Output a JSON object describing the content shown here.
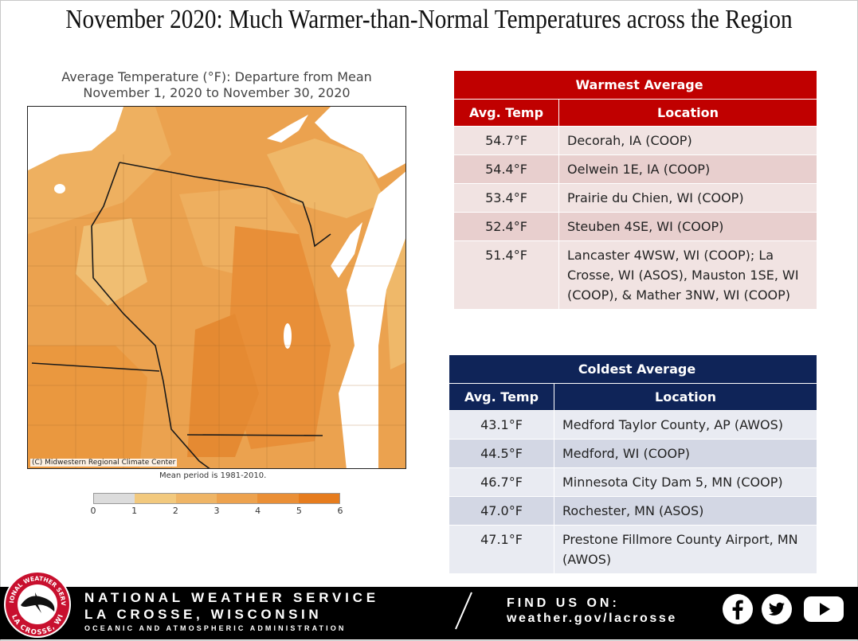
{
  "title": "November 2020:  Much Warmer-than-Normal Temperatures across the Region",
  "map": {
    "title_line1": "Average Temperature (°F): Departure from Mean",
    "title_line2": "November 1, 2020 to November 30, 2020",
    "credit": "(C) Midwestern Regional Climate Center",
    "mean_period": "Mean period is 1981-2010.",
    "legend": {
      "ticks": [
        "0",
        "1",
        "2",
        "3",
        "4",
        "5",
        "6"
      ],
      "colors": [
        "#dcdcdc",
        "#f2c97e",
        "#efb566",
        "#eda24e",
        "#ea8f36",
        "#e67c1e"
      ]
    }
  },
  "warmest": {
    "caption": "Warmest  Average",
    "headers": [
      "Avg. Temp",
      "Location"
    ],
    "rows": [
      {
        "temp": "54.7°F",
        "location": "Decorah, IA (COOP)"
      },
      {
        "temp": "54.4°F",
        "location": "Oelwein 1E, IA (COOP)"
      },
      {
        "temp": "53.4°F",
        "location": "Prairie du Chien, WI (COOP)"
      },
      {
        "temp": "52.4°F",
        "location": "Steuben 4SE, WI (COOP)"
      },
      {
        "temp": "51.4°F",
        "location": "Lancaster 4WSW, WI (COOP); La Crosse, WI (ASOS), Mauston 1SE, WI (COOP), & Mather 3NW, WI (COOP)"
      }
    ]
  },
  "coldest": {
    "caption": "Coldest Average",
    "headers": [
      "Avg. Temp",
      "Location"
    ],
    "rows": [
      {
        "temp": "43.1°F",
        "location": "Medford Taylor County, AP (AWOS)"
      },
      {
        "temp": "44.5°F",
        "location": "Medford, WI (COOP)"
      },
      {
        "temp": "46.7°F",
        "location": "Minnesota City Dam 5, MN (COOP)"
      },
      {
        "temp": "47.0°F",
        "location": "Rochester, MN (ASOS)"
      },
      {
        "temp": "47.1°F",
        "location": "Prestone Fillmore County Airport, MN (AWOS)"
      }
    ]
  },
  "footer": {
    "org_line1": "NATIONAL WEATHER SERVICE",
    "org_line2": "LA CROSSE, WISCONSIN",
    "org_line3": "OCEANIC AND ATMOSPHERIC ADMINISTRATION",
    "find_label": "FIND US ON:",
    "url": "weather.gov/lacrosse",
    "logo_top_text": "NATIONAL WEATHER SERVICE",
    "logo_bottom_text": "LA CROSSE, WI",
    "social_icons": [
      "facebook-icon",
      "twitter-icon",
      "youtube-icon"
    ]
  }
}
